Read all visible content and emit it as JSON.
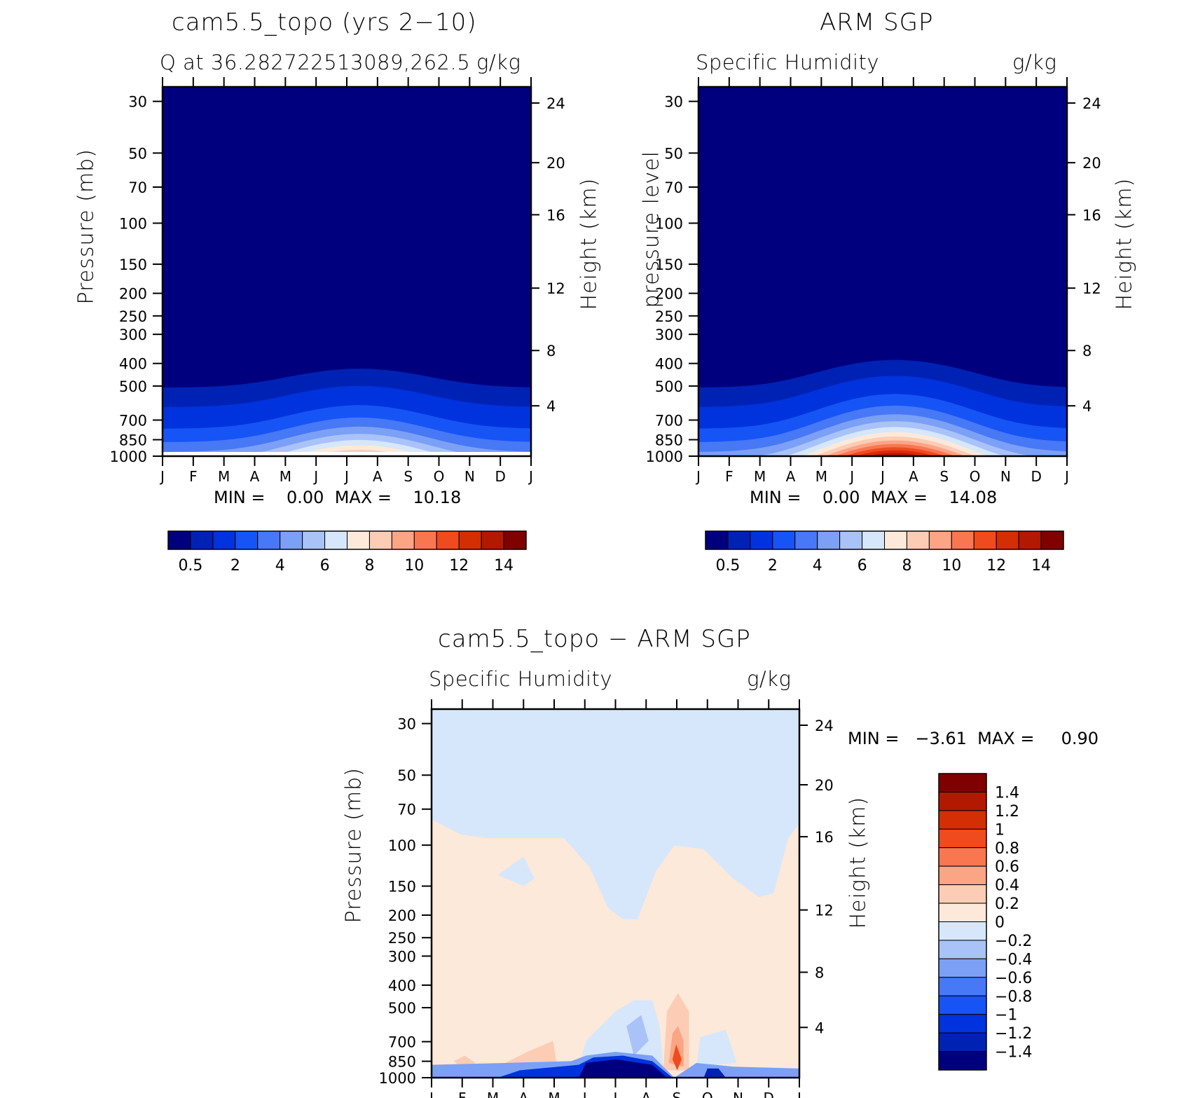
{
  "chart_data": [
    {
      "type": "heatmap",
      "title": "cam5.5_topo (yrs 2−10)",
      "subtitle_left": "Q at 36.282722513089,262.5",
      "subtitle_right": "g/kg",
      "ylabel": "Pressure (mb)",
      "ylabel_right": "Height (km)",
      "x_ticks": [
        "J",
        "F",
        "M",
        "A",
        "M",
        "J",
        "J",
        "A",
        "S",
        "O",
        "N",
        "D",
        "J"
      ],
      "y_ticks": [
        "30",
        "50",
        "70",
        "100",
        "150",
        "200",
        "250",
        "300",
        "400",
        "500",
        "700",
        "850",
        "1000"
      ],
      "y_right_ticks": [
        "24",
        "20",
        "16",
        "12",
        "8",
        "4"
      ],
      "min_max_text": "MIN =    0.00  MAX =    10.18",
      "colorbar_labels": [
        "0.5",
        "2",
        "4",
        "6",
        "8",
        "10",
        "12",
        "14"
      ],
      "value_range": [
        0.0,
        10.18
      ],
      "field": "seasonal cycle of specific humidity, max near surface in Jul"
    },
    {
      "type": "heatmap",
      "title": "ARM SGP",
      "subtitle_left": "Specific Humidity",
      "subtitle_right": "g/kg",
      "ylabel": "pressure level",
      "ylabel_right": "Height (km)",
      "x_ticks": [
        "J",
        "F",
        "M",
        "A",
        "M",
        "J",
        "J",
        "A",
        "S",
        "O",
        "N",
        "D",
        "J"
      ],
      "y_ticks": [
        "30",
        "50",
        "70",
        "100",
        "150",
        "200",
        "250",
        "300",
        "400",
        "500",
        "700",
        "850",
        "1000"
      ],
      "y_right_ticks": [
        "24",
        "20",
        "16",
        "12",
        "8",
        "4"
      ],
      "min_max_text": "MIN =    0.00  MAX =    14.08",
      "colorbar_labels": [
        "0.5",
        "2",
        "4",
        "6",
        "8",
        "10",
        "12",
        "14"
      ],
      "value_range": [
        0.0,
        14.08
      ]
    },
    {
      "type": "heatmap",
      "title": "cam5.5_topo − ARM SGP",
      "subtitle_left": "Specific Humidity",
      "subtitle_right": "g/kg",
      "ylabel": "Pressure (mb)",
      "ylabel_right": "Height (km)",
      "x_ticks": [
        "J",
        "F",
        "M",
        "A",
        "M",
        "J",
        "J",
        "A",
        "S",
        "O",
        "N",
        "D",
        "J"
      ],
      "y_ticks": [
        "30",
        "50",
        "70",
        "100",
        "150",
        "200",
        "250",
        "300",
        "400",
        "500",
        "700",
        "850",
        "1000"
      ],
      "y_right_ticks": [
        "24",
        "20",
        "16",
        "12",
        "8",
        "4"
      ],
      "min_max_text": "MIN =   −3.61  MAX =     0.90",
      "colorbar_labels": [
        "1.4",
        "1.2",
        "1",
        "0.8",
        "0.6",
        "0.4",
        "0.2",
        "0",
        "−0.2",
        "−0.4",
        "−0.6",
        "−0.8",
        "−1",
        "−1.2",
        "−1.4"
      ],
      "value_range": [
        -3.61,
        0.9
      ]
    }
  ],
  "colors": {
    "seq": [
      "#00007f",
      "#0022b4",
      "#0033dd",
      "#1654f5",
      "#4778f5",
      "#7ba0f6",
      "#a9c3f9",
      "#d6e7fb",
      "#fde9d9",
      "#fccdb4",
      "#fba584",
      "#f97750",
      "#ef4b1e",
      "#d42e05",
      "#b21900",
      "#800000"
    ],
    "div": [
      "#00007f",
      "#0022b4",
      "#0033dd",
      "#1654f5",
      "#4778f5",
      "#7ba0f6",
      "#a9c3f9",
      "#d6e7fb",
      "#fde9d9",
      "#fccdb4",
      "#fba584",
      "#f97750",
      "#ef4b1e",
      "#d42e05",
      "#b21900",
      "#800000"
    ]
  }
}
